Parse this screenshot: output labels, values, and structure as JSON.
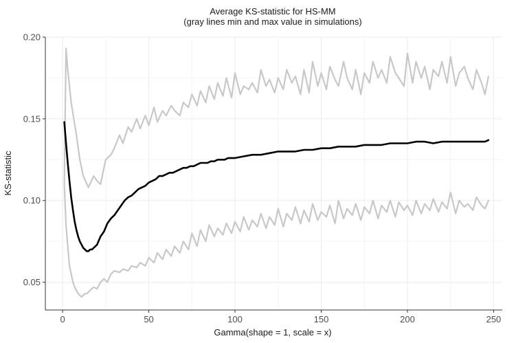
{
  "chart_data": {
    "type": "line",
    "title": "Average KS-statistic for HS-MM",
    "subtitle": "(gray lines min and max value in simulations)",
    "xlabel": "Gamma(shape = 1, scale = x)",
    "ylabel": "KS-statistic",
    "xlim": [
      -10,
      255
    ],
    "ylim": [
      0.033,
      0.2
    ],
    "x_ticks": [
      0,
      50,
      100,
      150,
      200,
      250
    ],
    "x_tick_labels": [
      "0",
      "50",
      "100",
      "150",
      "200",
      "250"
    ],
    "y_ticks": [
      0.05,
      0.1,
      0.15,
      0.2
    ],
    "y_tick_labels": [
      "0.05",
      "0.10",
      "0.15",
      "0.20"
    ],
    "grid": true,
    "legend": "none",
    "colors": {
      "mean": "#000000",
      "minmax": "#c8c8c8",
      "grid": "#ebebeb",
      "axis": "#333333"
    },
    "series": [
      {
        "role": "max",
        "color": "#c8c8c8",
        "x": [
          1,
          2,
          3,
          5,
          8,
          10,
          12,
          15,
          18,
          20,
          22,
          25,
          28,
          30,
          33,
          35,
          38,
          40,
          43,
          45,
          48,
          50,
          53,
          55,
          58,
          60,
          63,
          65,
          68,
          70,
          73,
          75,
          78,
          80,
          83,
          85,
          88,
          90,
          93,
          95,
          98,
          100,
          103,
          105,
          108,
          110,
          113,
          115,
          118,
          120,
          123,
          125,
          128,
          130,
          133,
          135,
          138,
          140,
          143,
          145,
          148,
          150,
          153,
          155,
          158,
          160,
          163,
          165,
          168,
          170,
          173,
          175,
          178,
          180,
          183,
          185,
          188,
          190,
          193,
          195,
          198,
          200,
          203,
          205,
          208,
          210,
          213,
          215,
          218,
          220,
          223,
          225,
          228,
          230,
          233,
          235,
          238,
          240,
          243,
          245,
          247
        ],
        "y": [
          0.11,
          0.193,
          0.18,
          0.16,
          0.14,
          0.125,
          0.115,
          0.108,
          0.115,
          0.112,
          0.11,
          0.125,
          0.128,
          0.132,
          0.14,
          0.135,
          0.145,
          0.142,
          0.15,
          0.144,
          0.152,
          0.146,
          0.157,
          0.148,
          0.155,
          0.152,
          0.158,
          0.155,
          0.152,
          0.16,
          0.157,
          0.165,
          0.158,
          0.167,
          0.16,
          0.17,
          0.162,
          0.172,
          0.164,
          0.175,
          0.163,
          0.178,
          0.165,
          0.17,
          0.168,
          0.172,
          0.166,
          0.18,
          0.17,
          0.174,
          0.166,
          0.175,
          0.168,
          0.18,
          0.172,
          0.176,
          0.165,
          0.18,
          0.166,
          0.185,
          0.17,
          0.178,
          0.168,
          0.182,
          0.174,
          0.17,
          0.185,
          0.175,
          0.168,
          0.18,
          0.165,
          0.178,
          0.172,
          0.185,
          0.175,
          0.18,
          0.172,
          0.188,
          0.178,
          0.175,
          0.17,
          0.19,
          0.172,
          0.185,
          0.175,
          0.182,
          0.168,
          0.18,
          0.176,
          0.185,
          0.172,
          0.188,
          0.17,
          0.178,
          0.182,
          0.175,
          0.168,
          0.18,
          0.172,
          0.165,
          0.176
        ]
      },
      {
        "role": "mean",
        "color": "#000000",
        "x": [
          1,
          2,
          3,
          4,
          5,
          6,
          7,
          8,
          9,
          10,
          11,
          12,
          13,
          14,
          15,
          16,
          17,
          18,
          19,
          20,
          22,
          24,
          26,
          28,
          30,
          32,
          34,
          36,
          38,
          40,
          42,
          44,
          46,
          48,
          50,
          52,
          54,
          56,
          58,
          60,
          62,
          64,
          66,
          68,
          70,
          72,
          74,
          76,
          78,
          80,
          82,
          84,
          86,
          88,
          90,
          92,
          94,
          96,
          98,
          100,
          105,
          110,
          115,
          120,
          125,
          130,
          135,
          140,
          145,
          150,
          155,
          160,
          165,
          170,
          175,
          180,
          185,
          190,
          195,
          200,
          205,
          210,
          215,
          220,
          225,
          230,
          235,
          240,
          245,
          247
        ],
        "y": [
          0.148,
          0.135,
          0.123,
          0.112,
          0.102,
          0.094,
          0.087,
          0.082,
          0.078,
          0.075,
          0.073,
          0.071,
          0.07,
          0.069,
          0.069,
          0.07,
          0.07,
          0.071,
          0.072,
          0.073,
          0.078,
          0.081,
          0.086,
          0.089,
          0.091,
          0.094,
          0.097,
          0.1,
          0.102,
          0.103,
          0.105,
          0.107,
          0.108,
          0.109,
          0.111,
          0.112,
          0.113,
          0.115,
          0.115,
          0.116,
          0.117,
          0.117,
          0.118,
          0.119,
          0.12,
          0.12,
          0.121,
          0.121,
          0.122,
          0.123,
          0.123,
          0.123,
          0.124,
          0.124,
          0.125,
          0.125,
          0.125,
          0.126,
          0.126,
          0.126,
          0.127,
          0.128,
          0.128,
          0.129,
          0.13,
          0.13,
          0.13,
          0.131,
          0.131,
          0.132,
          0.132,
          0.133,
          0.133,
          0.133,
          0.134,
          0.134,
          0.134,
          0.135,
          0.135,
          0.135,
          0.136,
          0.136,
          0.135,
          0.136,
          0.136,
          0.136,
          0.136,
          0.136,
          0.136,
          0.137
        ]
      },
      {
        "role": "min",
        "color": "#c8c8c8",
        "x": [
          1,
          2,
          3,
          4,
          5,
          6,
          7,
          8,
          9,
          10,
          11,
          12,
          13,
          14,
          15,
          16,
          17,
          18,
          20,
          22,
          24,
          26,
          28,
          30,
          33,
          35,
          38,
          40,
          43,
          45,
          48,
          50,
          53,
          55,
          58,
          60,
          63,
          65,
          68,
          70,
          73,
          75,
          78,
          80,
          83,
          85,
          88,
          90,
          93,
          95,
          98,
          100,
          103,
          105,
          108,
          110,
          113,
          115,
          118,
          120,
          123,
          125,
          128,
          130,
          133,
          135,
          138,
          140,
          143,
          145,
          148,
          150,
          153,
          155,
          158,
          160,
          163,
          165,
          168,
          170,
          173,
          175,
          178,
          180,
          183,
          185,
          188,
          190,
          193,
          195,
          198,
          200,
          203,
          205,
          208,
          210,
          213,
          215,
          218,
          220,
          223,
          225,
          228,
          230,
          233,
          235,
          238,
          240,
          243,
          245,
          247
        ],
        "y": [
          0.11,
          0.085,
          0.072,
          0.06,
          0.055,
          0.05,
          0.047,
          0.045,
          0.043,
          0.042,
          0.041,
          0.042,
          0.043,
          0.043,
          0.044,
          0.045,
          0.046,
          0.047,
          0.046,
          0.05,
          0.052,
          0.05,
          0.055,
          0.057,
          0.056,
          0.058,
          0.057,
          0.06,
          0.059,
          0.062,
          0.06,
          0.065,
          0.062,
          0.068,
          0.064,
          0.07,
          0.066,
          0.072,
          0.068,
          0.075,
          0.07,
          0.08,
          0.072,
          0.082,
          0.075,
          0.085,
          0.078,
          0.083,
          0.079,
          0.086,
          0.08,
          0.087,
          0.081,
          0.09,
          0.082,
          0.088,
          0.084,
          0.092,
          0.083,
          0.09,
          0.085,
          0.095,
          0.084,
          0.092,
          0.088,
          0.096,
          0.086,
          0.094,
          0.087,
          0.098,
          0.088,
          0.093,
          0.09,
          0.097,
          0.086,
          0.1,
          0.089,
          0.095,
          0.091,
          0.098,
          0.088,
          0.096,
          0.092,
          0.1,
          0.089,
          0.097,
          0.093,
          0.1,
          0.09,
          0.099,
          0.094,
          0.097,
          0.091,
          0.1,
          0.092,
          0.098,
          0.094,
          0.101,
          0.093,
          0.099,
          0.095,
          0.105,
          0.092,
          0.1,
          0.096,
          0.098,
          0.094,
          0.102,
          0.097,
          0.095,
          0.1
        ]
      }
    ]
  }
}
